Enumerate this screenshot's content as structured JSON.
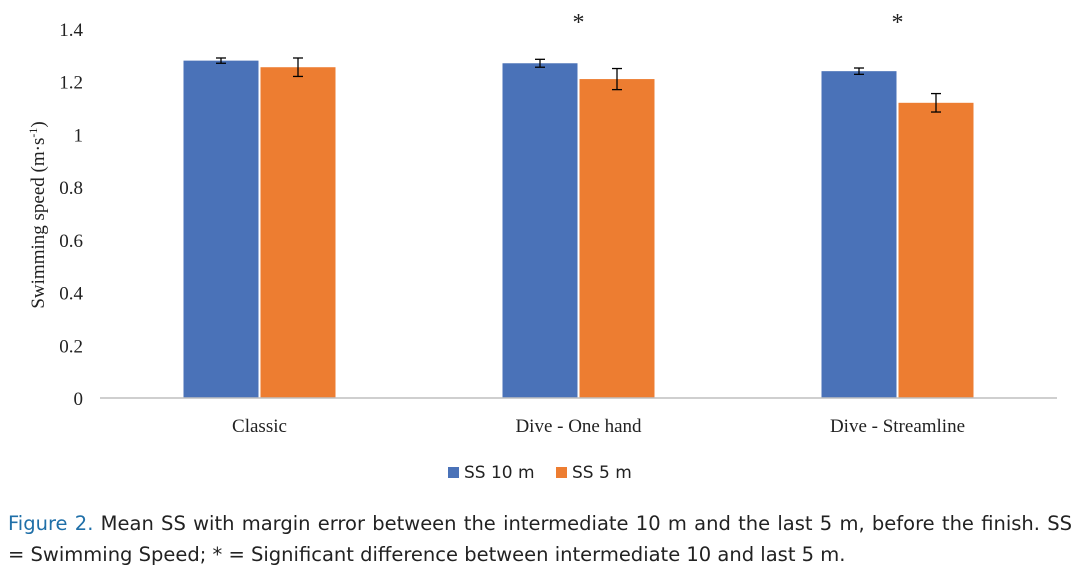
{
  "chart_data": {
    "type": "bar",
    "categories": [
      "Classic",
      "Dive - One hand",
      "Dive - Streamline"
    ],
    "series": [
      {
        "name": "SS 10 m",
        "color": "#4a72b8",
        "values": [
          1.28,
          1.27,
          1.24
        ],
        "errors": [
          0.01,
          0.015,
          0.012
        ]
      },
      {
        "name": "SS 5 m",
        "color": "#ed7d31",
        "values": [
          1.255,
          1.21,
          1.12
        ],
        "errors": [
          0.035,
          0.04,
          0.035
        ]
      }
    ],
    "ylabel_main": "Swimming  speed (m·s",
    "ylabel_sup": "-1",
    "ylabel_close": ")",
    "yticks": [
      "0",
      "0.2",
      "0.4",
      "0.6",
      "0.8",
      "1",
      "1.2",
      "1.4"
    ],
    "ylim": [
      0,
      1.4
    ],
    "significance": [
      "",
      "*",
      "*"
    ],
    "legend_position": "bottom",
    "grid": false
  },
  "caption": {
    "label": "Figure 2.",
    "text": " Mean SS with margin error between the intermediate 10 m and the last 5 m, before the finish. SS = Swimming Speed; * = Significant difference between intermediate 10 and last 5 m."
  }
}
